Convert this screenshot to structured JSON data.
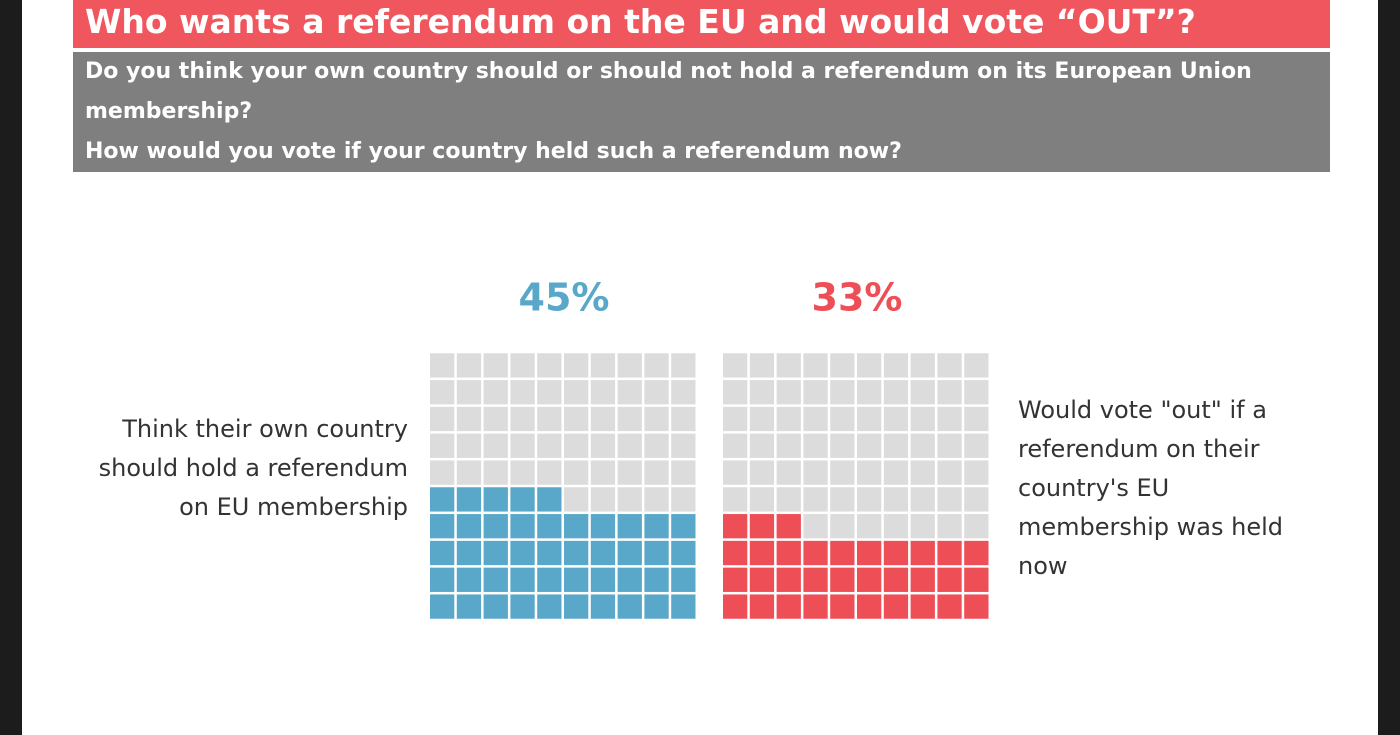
{
  "chart_data": {
    "type": "waffle",
    "title": "Who wants a referendum on the EU and would vote “OUT”?",
    "subtitle": [
      "Do you think your own country should or should not hold a referendum on its European Union membership?",
      "How would you vote if your country held such a referendum now?"
    ],
    "categories": [
      "Think their own country should  hold a referendum on  EU membership",
      "Would vote \"out\"  if a referendum on their country's EU membership was held now"
    ],
    "values": [
      45,
      33
    ],
    "value_labels": [
      "45%",
      "33%"
    ],
    "colors": [
      "#5aa8c9",
      "#ee4f57"
    ]
  }
}
